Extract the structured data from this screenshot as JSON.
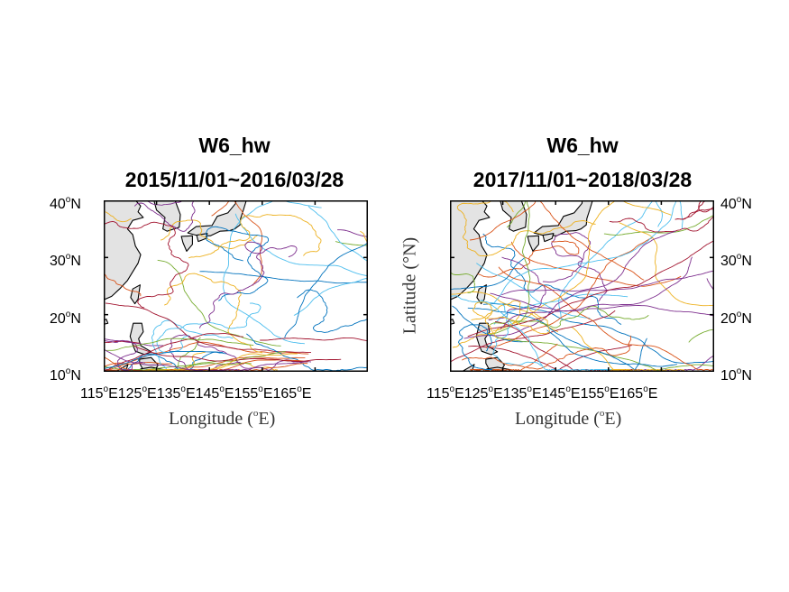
{
  "figure": {
    "panels": [
      {
        "title_line1": "W6_hw",
        "title_line2": "2015/11/01~2016/03/28",
        "xticks": [
          "115",
          "125",
          "135",
          "145",
          "155",
          "165"
        ],
        "yticks": [
          "40",
          "30",
          "20",
          "10"
        ],
        "x_suffix": "E",
        "y_suffix": "N",
        "xlabel_main": "Longitude (",
        "xlabel_deg": "o",
        "xlabel_unit": "E)",
        "ylabel": ""
      },
      {
        "title_line1": "W6_hw",
        "title_line2": "2017/11/01~2018/03/28",
        "xticks": [
          "115",
          "125",
          "135",
          "145",
          "155",
          "165"
        ],
        "yticks": [
          "40",
          "30",
          "20",
          "10"
        ],
        "x_suffix": "E",
        "y_suffix": "N",
        "xlabel_main": "Longitude (",
        "xlabel_deg": "o",
        "xlabel_unit": "E)",
        "ylabel": "Latitude (°N)"
      }
    ],
    "degree_symbol": "o"
  },
  "chart_data": {
    "type": "map-trajectories",
    "extent": {
      "lon": [
        115,
        165
      ],
      "lat": [
        10,
        40
      ]
    },
    "land_color": "#e3e3e3",
    "coast_color": "#000000",
    "track_colors": [
      "#0072bd",
      "#d95319",
      "#edb120",
      "#7e2f8e",
      "#77ac30",
      "#4dbeee",
      "#a2142f"
    ]
  }
}
